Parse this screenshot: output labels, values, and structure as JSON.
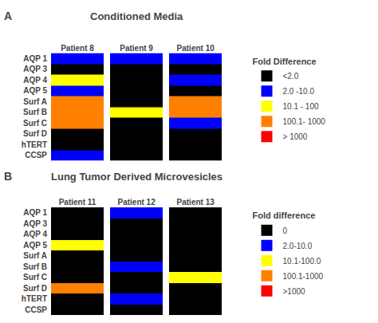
{
  "chart_data": [
    {
      "type": "heatmap",
      "title": "Conditioned Media",
      "label": "A",
      "categories": [
        "Patient 8",
        "Patient 9",
        "Patient 10"
      ],
      "rows": [
        "AQP 1",
        "AQP 3",
        "AQP 4",
        "AQP 5",
        "Surf A",
        "Surf B",
        "Surf C",
        "Surf D",
        "hTERT",
        "CCSP"
      ],
      "cells": [
        [
          "#0000FF",
          "#0000FF",
          "#0000FF"
        ],
        [
          "#000000",
          "#000000",
          "#000000"
        ],
        [
          "#FFFF00",
          "#000000",
          "#0000FF"
        ],
        [
          "#0000FF",
          "#000000",
          "#000000"
        ],
        [
          "#FF8000",
          "#000000",
          "#FF8000"
        ],
        [
          "#FF8000",
          "#FFFF00",
          "#FF8000"
        ],
        [
          "#FF8000",
          "#000000",
          "#0000FF"
        ],
        [
          "#000000",
          "#000000",
          "#000000"
        ],
        [
          "#000000",
          "#000000",
          "#000000"
        ],
        [
          "#0000FF",
          "#000000",
          "#000000"
        ]
      ],
      "legend_title": "Fold Difference",
      "series": [
        {
          "name": "<2.0",
          "color": "#000000"
        },
        {
          "name": "2.0 -10.0",
          "color": "#0000FF"
        },
        {
          "name": "10.1 - 100",
          "color": "#FFFF00"
        },
        {
          "name": "100.1- 1000",
          "color": "#FF8000"
        },
        {
          "name": "> 1000",
          "color": "#FF0000"
        }
      ]
    },
    {
      "type": "heatmap",
      "title": "Lung Tumor Derived Microvesicles",
      "label": "B",
      "categories": [
        "Patient 11",
        "Patient 12",
        "Patient 13"
      ],
      "rows": [
        "AQP 1",
        "AQP 3",
        "AQP 4",
        "AQP 5",
        "Surf A",
        "Surf B",
        "Surf C",
        "Surf D",
        "hTERT",
        "CCSP"
      ],
      "cells": [
        [
          "#000000",
          "#0000FF",
          "#000000"
        ],
        [
          "#000000",
          "#000000",
          "#000000"
        ],
        [
          "#000000",
          "#000000",
          "#000000"
        ],
        [
          "#FFFF00",
          "#000000",
          "#000000"
        ],
        [
          "#000000",
          "#000000",
          "#000000"
        ],
        [
          "#000000",
          "#0000FF",
          "#000000"
        ],
        [
          "#000000",
          "#000000",
          "#FFFF00"
        ],
        [
          "#FF8000",
          "#000000",
          "#000000"
        ],
        [
          "#000000",
          "#0000FF",
          "#000000"
        ],
        [
          "#000000",
          "#000000",
          "#000000"
        ]
      ],
      "legend_title": "Fold difference",
      "series": [
        {
          "name": "0",
          "color": "#000000"
        },
        {
          "name": "2.0-10.0",
          "color": "#0000FF"
        },
        {
          "name": "10.1-100.0",
          "color": "#FFFF00"
        },
        {
          "name": "100.1-1000",
          "color": "#FF8000"
        },
        {
          "name": ">1000",
          "color": "#FF0000"
        }
      ]
    }
  ]
}
